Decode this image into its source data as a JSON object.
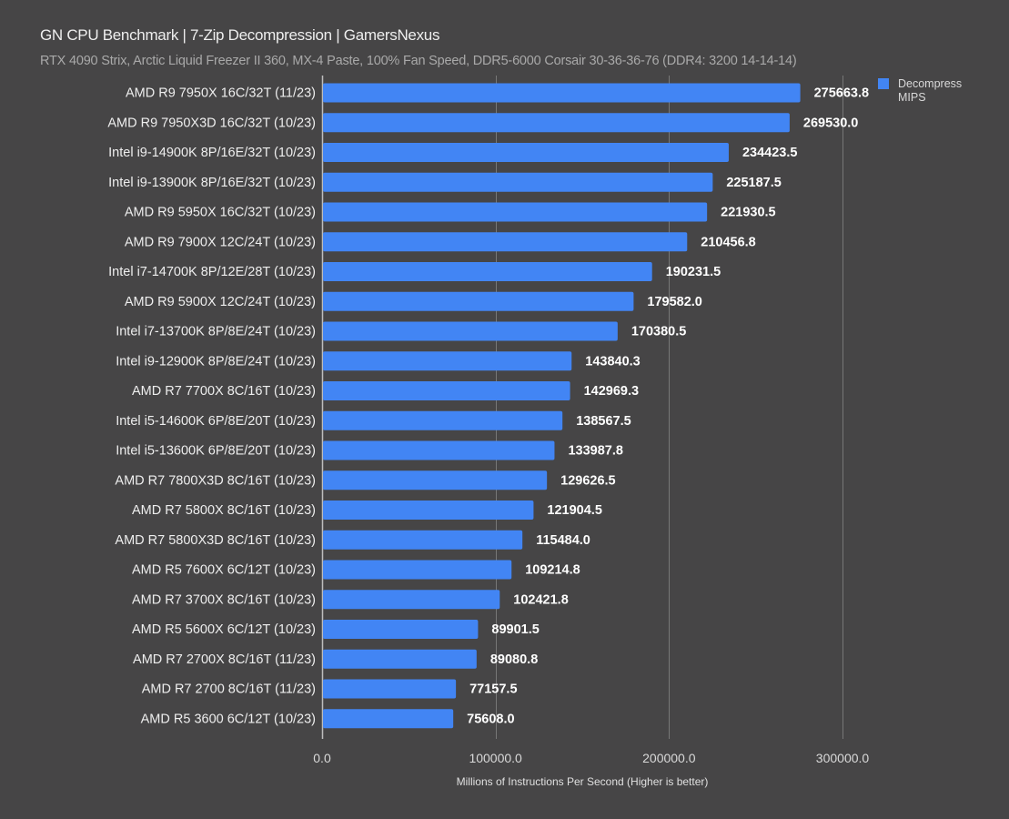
{
  "chart_data": {
    "type": "bar",
    "orientation": "horizontal",
    "title": "GN CPU Benchmark | 7-Zip Decompression | GamersNexus",
    "subtitle": "RTX 4090 Strix, Arctic Liquid Freezer II 360, MX-4 Paste, 100% Fan Speed, DDR5-6000 Corsair 30-36-36-76 (DDR4: 3200 14-14-14)",
    "xlabel": "Millions of Instructions Per Second (Higher is better)",
    "ylabel": "",
    "xlim": [
      0,
      320000
    ],
    "xticks": [
      0,
      100000,
      200000,
      300000
    ],
    "xtick_labels": [
      "0.0",
      "100000.0",
      "200000.0",
      "300000.0"
    ],
    "grid": true,
    "legend_position": "top-right",
    "bar_color": "#4285f4",
    "categories": [
      "AMD R9 7950X 16C/32T (11/23)",
      "AMD R9 7950X3D 16C/32T (10/23)",
      "Intel i9-14900K 8P/16E/32T (10/23)",
      "Intel i9-13900K 8P/16E/32T (10/23)",
      "AMD R9 5950X 16C/32T (10/23)",
      "AMD R9 7900X 12C/24T (10/23)",
      "Intel i7-14700K 8P/12E/28T (10/23)",
      "AMD R9 5900X 12C/24T (10/23)",
      "Intel i7-13700K 8P/8E/24T (10/23)",
      "Intel i9-12900K 8P/8E/24T (10/23)",
      "AMD R7 7700X 8C/16T (10/23)",
      "Intel i5-14600K 6P/8E/20T (10/23)",
      "Intel i5-13600K 6P/8E/20T (10/23)",
      "AMD R7 7800X3D 8C/16T (10/23)",
      "AMD R7 5800X 8C/16T (10/23)",
      "AMD R7 5800X3D 8C/16T (10/23)",
      "AMD R5 7600X 6C/12T (10/23)",
      "AMD R7 3700X 8C/16T (10/23)",
      "AMD R5 5600X 6C/12T (10/23)",
      "AMD R7 2700X 8C/16T (11/23)",
      "AMD R7 2700 8C/16T (11/23)",
      "AMD R5 3600 6C/12T (10/23)"
    ],
    "series": [
      {
        "name": "Decompress MIPS",
        "values": [
          275663.8,
          269530.0,
          234423.5,
          225187.5,
          221930.5,
          210456.8,
          190231.5,
          179582.0,
          170380.5,
          143840.3,
          142969.3,
          138567.5,
          133987.8,
          129626.5,
          121904.5,
          115484.0,
          109214.8,
          102421.8,
          89901.5,
          89080.8,
          77157.5,
          75608.0
        ],
        "labels": [
          "275663.8",
          "269530.0",
          "234423.5",
          "225187.5",
          "221930.5",
          "210456.8",
          "190231.5",
          "179582.0",
          "170380.5",
          "143840.3",
          "142969.3",
          "138567.5",
          "133987.8",
          "129626.5",
          "121904.5",
          "115484.0",
          "109214.8",
          "102421.8",
          "89901.5",
          "89080.8",
          "77157.5",
          "75608.0"
        ]
      }
    ]
  },
  "legend": {
    "label_line1": "Decompress",
    "label_line2": "MIPS"
  }
}
